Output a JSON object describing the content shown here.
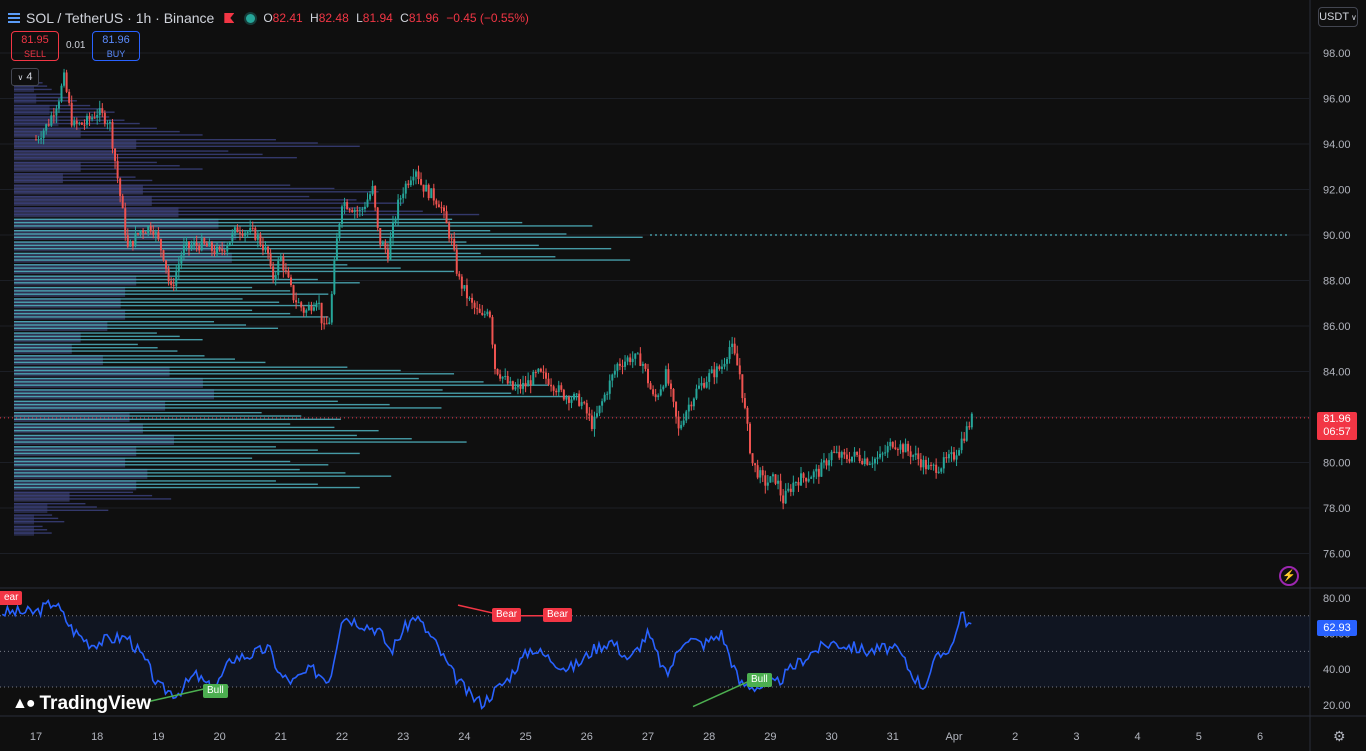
{
  "header": {
    "symbol": "SOL / TetherUS · 1h · Binance",
    "o_label": "O",
    "o_value": "82.41",
    "h_label": "H",
    "h_value": "82.48",
    "l_label": "L",
    "l_value": "81.94",
    "c_label": "C",
    "c_value": "81.96",
    "change": "−0.45 (−0.55%)"
  },
  "trade": {
    "sell_price": "81.95",
    "sell_label": "SELL",
    "spread": "0.01",
    "buy_price": "81.96",
    "buy_label": "BUY"
  },
  "indicator_count": "4",
  "currency": "USDT",
  "last_price": "81.96",
  "countdown": "06:57",
  "rsi_value": "62.93",
  "branding": "TradingView",
  "markers": {
    "bear_cut": "ear",
    "bear": "Bear",
    "bull": "Bull"
  },
  "colors": {
    "up": "#26a69a",
    "down": "#ef5350",
    "rsi_line": "#2962ff",
    "volume_profile": "#4fb3bf",
    "background": "#0f0f0f"
  },
  "icons": {
    "menu": "menu-icon",
    "flag": "flag-icon",
    "status": "status-dot-icon",
    "collapse": "chevron-down-icon",
    "alert": "lightning-icon",
    "settings": "gear-icon",
    "logo": "tradingview-logo-icon"
  },
  "chart_data": {
    "type": "candlestick",
    "price_axis": {
      "ticks": [
        98,
        96,
        94,
        92,
        90,
        88,
        86,
        84,
        82,
        80,
        78,
        76
      ],
      "tick_labels": [
        "98.00",
        "96.00",
        "94.00",
        "92.00",
        "90.00",
        "88.00",
        "86.00",
        "84.00",
        "82.00",
        "80.00",
        "78.00",
        "76.00"
      ]
    },
    "rsi_axis": {
      "ticks": [
        80,
        60,
        40,
        20
      ],
      "tick_labels": [
        "80.00",
        "60.00",
        "40.00",
        "20.00"
      ],
      "upper_band": 70,
      "middle": 50,
      "lower_band": 30
    },
    "x_labels": [
      "17",
      "18",
      "19",
      "20",
      "21",
      "22",
      "23",
      "24",
      "25",
      "26",
      "27",
      "28",
      "29",
      "30",
      "31",
      "Apr",
      "2",
      "3",
      "4",
      "5",
      "6"
    ],
    "price_path": [
      [
        0,
        94.2
      ],
      [
        0.2,
        94.9
      ],
      [
        0.4,
        96.2
      ],
      [
        0.45,
        97.0
      ],
      [
        0.6,
        94.8
      ],
      [
        0.8,
        94.9
      ],
      [
        1.0,
        95.4
      ],
      [
        1.2,
        95.0
      ],
      [
        1.5,
        89.4
      ],
      [
        1.7,
        90.2
      ],
      [
        1.9,
        90.4
      ],
      [
        2.1,
        89.0
      ],
      [
        2.2,
        87.5
      ],
      [
        2.4,
        89.4
      ],
      [
        2.7,
        89.6
      ],
      [
        3.0,
        89.2
      ],
      [
        3.3,
        90.3
      ],
      [
        3.6,
        90.0
      ],
      [
        3.8,
        89.1
      ],
      [
        3.85,
        88.0
      ],
      [
        4.0,
        89.0
      ],
      [
        4.2,
        87.3
      ],
      [
        4.4,
        86.6
      ],
      [
        4.6,
        87.3
      ],
      [
        4.7,
        85.8
      ],
      [
        4.8,
        86.3
      ],
      [
        4.9,
        89.4
      ],
      [
        5.0,
        91.5
      ],
      [
        5.3,
        91.0
      ],
      [
        5.5,
        92.0
      ],
      [
        5.6,
        89.8
      ],
      [
        5.75,
        89.2
      ],
      [
        5.9,
        91.2
      ],
      [
        6.0,
        92.0
      ],
      [
        6.2,
        93.0
      ],
      [
        6.3,
        92.2
      ],
      [
        6.6,
        91.4
      ],
      [
        6.8,
        89.6
      ],
      [
        6.9,
        88.1
      ],
      [
        7.1,
        87.0
      ],
      [
        7.3,
        86.3
      ],
      [
        7.4,
        87.0
      ],
      [
        7.5,
        84.2
      ],
      [
        7.7,
        83.5
      ],
      [
        7.8,
        83.2
      ],
      [
        8.0,
        83.4
      ],
      [
        8.2,
        83.9
      ],
      [
        8.4,
        83.6
      ],
      [
        8.6,
        83.0
      ],
      [
        8.9,
        82.7
      ],
      [
        9.1,
        81.6
      ],
      [
        9.3,
        83.0
      ],
      [
        9.5,
        84.3
      ],
      [
        9.7,
        84.6
      ],
      [
        9.9,
        84.5
      ],
      [
        10.1,
        82.7
      ],
      [
        10.3,
        83.9
      ],
      [
        10.5,
        81.4
      ],
      [
        10.6,
        82.2
      ],
      [
        10.8,
        83.2
      ],
      [
        11.0,
        83.8
      ],
      [
        11.2,
        84.2
      ],
      [
        11.35,
        85.2
      ],
      [
        11.5,
        83.9
      ],
      [
        11.55,
        82.9
      ],
      [
        11.7,
        80.0
      ],
      [
        11.9,
        79.1
      ],
      [
        12.1,
        79.3
      ],
      [
        12.2,
        78.3
      ],
      [
        12.4,
        79.2
      ],
      [
        12.6,
        79.4
      ],
      [
        12.8,
        79.6
      ],
      [
        13.0,
        80.4
      ],
      [
        13.2,
        80.2
      ],
      [
        13.4,
        80.3
      ],
      [
        13.6,
        80.1
      ],
      [
        13.8,
        80.2
      ],
      [
        14.0,
        80.9
      ],
      [
        14.2,
        80.6
      ],
      [
        14.4,
        80.2
      ],
      [
        14.6,
        79.7
      ],
      [
        14.8,
        79.9
      ],
      [
        15.0,
        80.3
      ],
      [
        15.2,
        81.4
      ],
      [
        15.3,
        81.96
      ]
    ],
    "volume_profile_levels": [
      [
        96.5,
        0.06
      ],
      [
        96.0,
        0.1
      ],
      [
        95.5,
        0.16
      ],
      [
        95.0,
        0.2
      ],
      [
        94.5,
        0.3
      ],
      [
        94.0,
        0.55
      ],
      [
        93.5,
        0.45
      ],
      [
        93.0,
        0.3
      ],
      [
        92.5,
        0.22
      ],
      [
        92.0,
        0.58
      ],
      [
        91.5,
        0.62
      ],
      [
        91.0,
        0.74
      ],
      [
        90.5,
        0.92
      ],
      [
        90.0,
        1.0
      ],
      [
        89.5,
        0.95
      ],
      [
        89.0,
        0.98
      ],
      [
        88.5,
        0.7
      ],
      [
        88.0,
        0.55
      ],
      [
        87.5,
        0.5
      ],
      [
        87.0,
        0.48
      ],
      [
        86.5,
        0.5
      ],
      [
        86.0,
        0.42
      ],
      [
        85.5,
        0.3
      ],
      [
        85.0,
        0.26
      ],
      [
        84.5,
        0.4
      ],
      [
        84.0,
        0.7
      ],
      [
        83.5,
        0.85
      ],
      [
        83.0,
        0.9
      ],
      [
        82.5,
        0.68
      ],
      [
        82.0,
        0.52
      ],
      [
        81.5,
        0.58
      ],
      [
        81.0,
        0.72
      ],
      [
        80.5,
        0.55
      ],
      [
        80.0,
        0.5
      ],
      [
        79.5,
        0.6
      ],
      [
        79.0,
        0.55
      ],
      [
        78.5,
        0.25
      ],
      [
        78.0,
        0.15
      ],
      [
        77.5,
        0.08
      ],
      [
        77.0,
        0.06
      ]
    ],
    "point_of_control": 90.0,
    "rsi_path": [
      [
        0,
        72
      ],
      [
        0.3,
        78
      ],
      [
        0.6,
        62
      ],
      [
        0.9,
        54
      ],
      [
        1.2,
        57
      ],
      [
        1.5,
        58
      ],
      [
        1.8,
        44
      ],
      [
        2.0,
        30
      ],
      [
        2.3,
        26
      ],
      [
        2.6,
        37
      ],
      [
        2.9,
        28
      ],
      [
        3.2,
        46
      ],
      [
        3.5,
        48
      ],
      [
        3.8,
        52
      ],
      [
        4.0,
        36
      ],
      [
        4.2,
        33
      ],
      [
        4.5,
        40
      ],
      [
        4.8,
        34
      ],
      [
        5.0,
        70
      ],
      [
        5.3,
        66
      ],
      [
        5.6,
        62
      ],
      [
        5.8,
        50
      ],
      [
        6.0,
        62
      ],
      [
        6.2,
        70
      ],
      [
        6.5,
        56
      ],
      [
        6.8,
        38
      ],
      [
        7.1,
        25
      ],
      [
        7.3,
        21
      ],
      [
        7.5,
        28
      ],
      [
        7.7,
        34
      ],
      [
        7.9,
        44
      ],
      [
        8.1,
        52
      ],
      [
        8.4,
        46
      ],
      [
        8.7,
        40
      ],
      [
        8.9,
        44
      ],
      [
        9.1,
        51
      ],
      [
        9.4,
        56
      ],
      [
        9.7,
        45
      ],
      [
        10.0,
        60
      ],
      [
        10.3,
        36
      ],
      [
        10.6,
        58
      ],
      [
        10.9,
        54
      ],
      [
        11.2,
        60
      ],
      [
        11.5,
        32
      ],
      [
        11.8,
        30
      ],
      [
        12.1,
        32
      ],
      [
        12.4,
        42
      ],
      [
        12.7,
        50
      ],
      [
        13.0,
        55
      ],
      [
        13.3,
        53
      ],
      [
        13.6,
        50
      ],
      [
        13.9,
        52
      ],
      [
        14.1,
        50
      ],
      [
        14.3,
        38
      ],
      [
        14.5,
        30
      ],
      [
        14.7,
        45
      ],
      [
        15.0,
        55
      ],
      [
        15.1,
        72
      ],
      [
        15.3,
        62.9
      ]
    ]
  }
}
